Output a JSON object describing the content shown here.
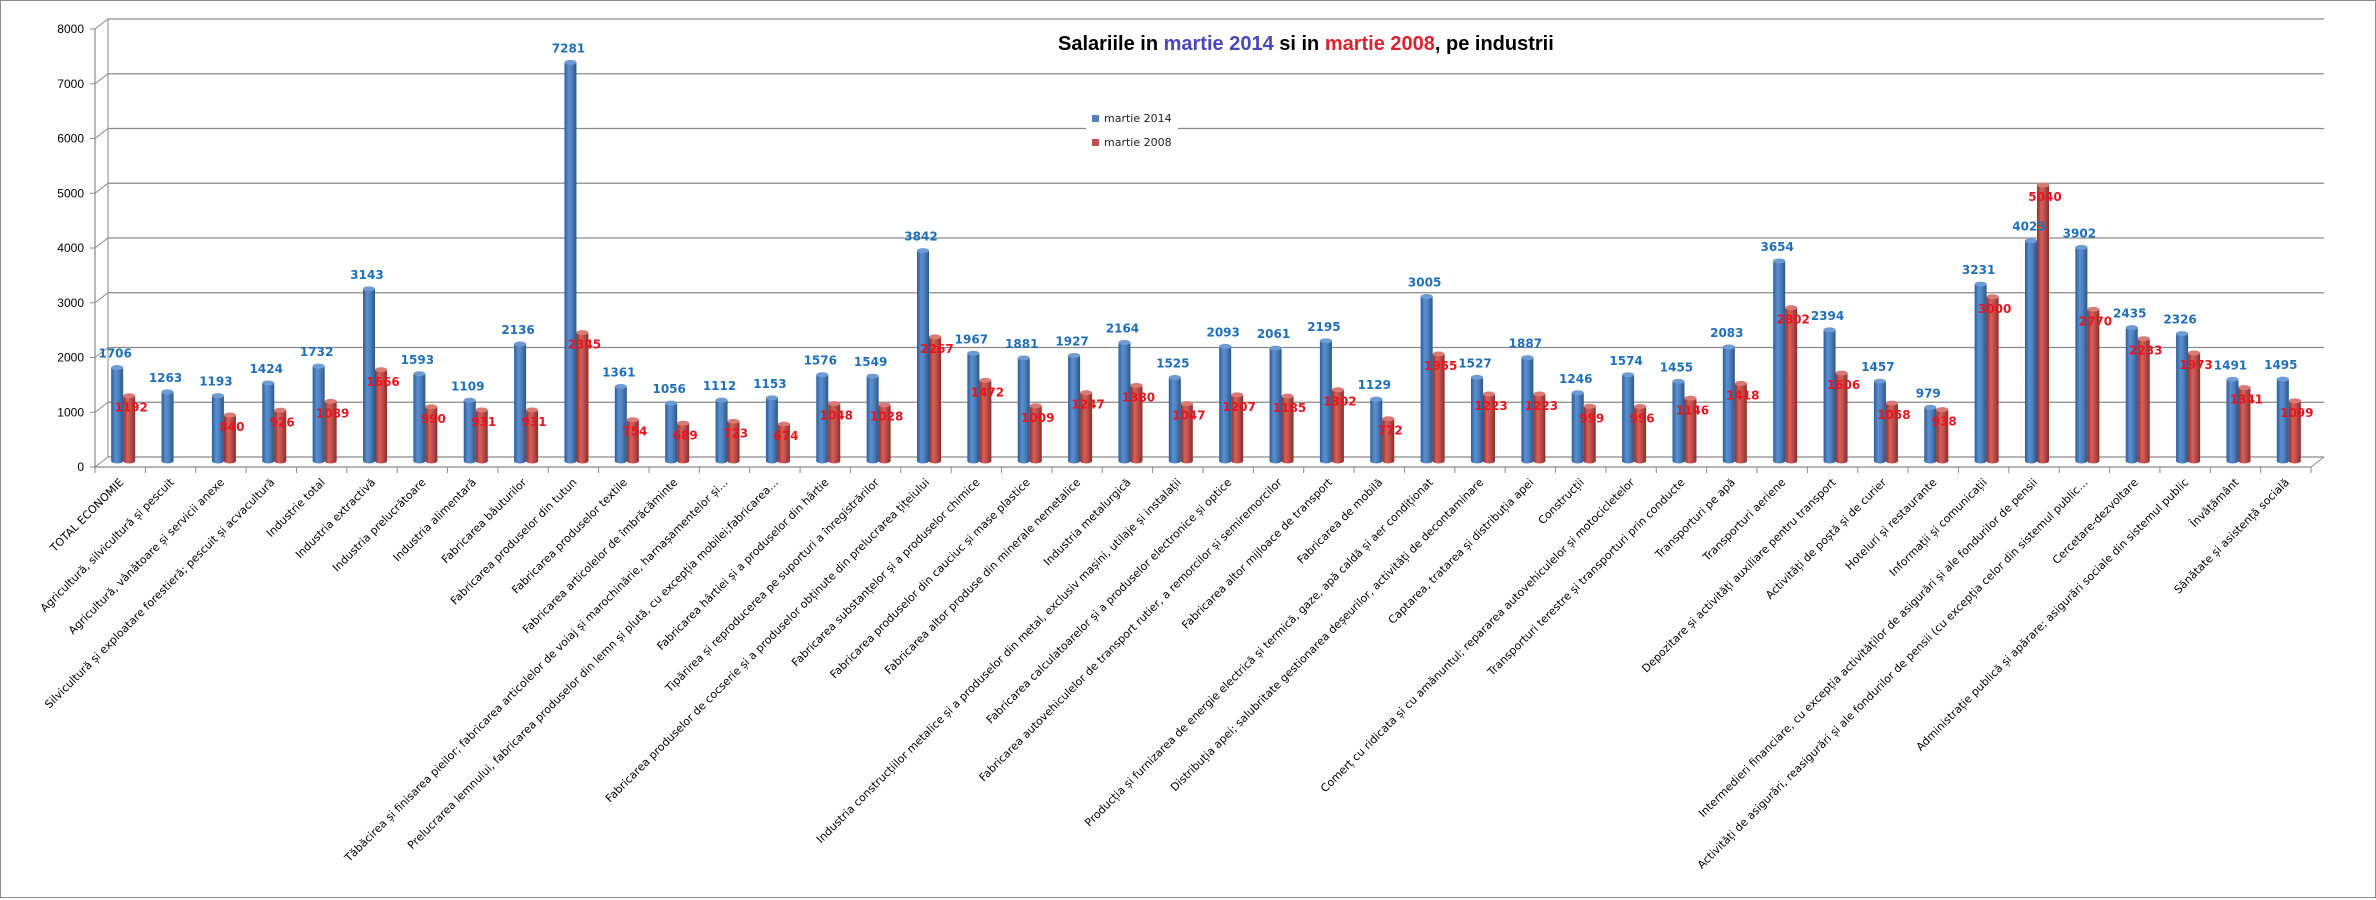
{
  "chart_data": {
    "type": "bar",
    "style": "3d-cylinder-clustered",
    "title": {
      "parts": [
        {
          "text": "Salariile in ",
          "color": "#000000"
        },
        {
          "text": "martie 2014",
          "color": "#4a48b8"
        },
        {
          "text": " si in ",
          "color": "#000000"
        },
        {
          "text": "martie 2008",
          "color": "#e0212e"
        },
        {
          "text": ", pe industrii",
          "color": "#000000"
        }
      ]
    },
    "xlabel": "",
    "ylabel": "",
    "ylim": [
      0,
      8000
    ],
    "yticks": [
      0,
      1000,
      2000,
      3000,
      4000,
      5000,
      6000,
      7000,
      8000
    ],
    "grid": true,
    "legend_position": "top-center",
    "categories": [
      "TOTAL ECONOMIE",
      "Agricultură, silvicultură și pescuit",
      "Agricultură, vânătoare și servicii anexe",
      "Silvicultură și exploatare forestieră; pescuit și acvacultură",
      "Industrie total",
      "Industria extractivă",
      "Industria prelucrătoare",
      "Industria alimentară",
      "Fabricarea băuturilor",
      "Fabricarea produselor din tutun",
      "Fabricarea produselor textile",
      "Fabricarea articolelor de îmbrăcăminte",
      "Tăbăcirea și finisarea pieilor; fabricarea articolelor de voiaj și marochinărie, harnașamentelor și…",
      "Prelucrarea lemnului, fabricarea produselor din lemn și plută, cu excepția mobilei;fabricarea…",
      "Fabricarea hârtiei și a produselor din hârtie",
      "Tipărirea și reproducerea pe suporturi a înregistrărilor",
      "Fabricarea produselor de cocserie și a produselor obținute din prelucrarea țițeiului",
      "Fabricarea substanțelor și a produselor chimice",
      "Fabricarea produselor din cauciuc și mase plastice",
      "Fabricarea altor produse din minerale nemetalice",
      "Industria metalurgică",
      "Industria construcțiilor metalice și a produselor din metal, exclusiv mașini, utilaje și instalații",
      "Fabricarea calculatoarelor și a produselor electronice și optice",
      "Fabricarea autovehiculelor de transport rutier, a remorcilor și semiremorcilor",
      "Fabricarea altor mijloace de transport",
      "Fabricarea de mobilă",
      "Producția și furnizarea de energie electrică și termică, gaze, apă caldă și aer condiționat",
      "Distribuția apei; salubritate gestionarea deșeurilor, activități de decontaminare",
      "Captarea, tratarea și distribuția apei",
      "Construcții",
      "Comerț cu ridicata și cu amănuntul; repararea autovehiculelor și motocicletelor",
      "Transporturi terestre și transporturi prin conducte",
      "Transporturi pe apă",
      "Transporturi aeriene",
      "Depozitare și activități auxiliare pentru transport",
      "Activități de poștă și de curier",
      "Hoteluri și restaurante",
      "Informații și comunicații",
      "Intermedieri financiare, cu excepția activităților de asigurări și ale fondurilor de pensii",
      "Activități de asigurări, reasigurări și ale fondurilor de pensii (cu excepția celor din sistemul public…",
      "Cercetare-dezvoltare",
      "Administrație publică și apărare; asigurări sociale din sistemul public",
      "Învățământ",
      "Sănătate și asistență socială"
    ],
    "series": [
      {
        "name": "martie 2014",
        "color": "#4f81bd",
        "label_color": "#1f6fbd",
        "values": [
          1706,
          1263,
          1193,
          1424,
          1732,
          3143,
          1593,
          1109,
          2136,
          7281,
          1361,
          1056,
          1112,
          1153,
          1576,
          1549,
          3842,
          1967,
          1881,
          1927,
          2164,
          1525,
          2093,
          2061,
          2195,
          1129,
          3005,
          1527,
          1887,
          1246,
          1574,
          1455,
          2083,
          3654,
          2394,
          1457,
          979,
          3231,
          4023,
          3902,
          2435,
          2326,
          1491,
          1495
        ]
      },
      {
        "name": "martie 2008",
        "color": "#c0504d",
        "label_color": "#e8141e",
        "values": [
          1192,
          null,
          840,
          926,
          1089,
          1666,
          990,
          931,
          931,
          2345,
          754,
          689,
          723,
          674,
          1048,
          1028,
          2267,
          1472,
          1009,
          1247,
          1380,
          1047,
          1207,
          1185,
          1302,
          772,
          1955,
          1223,
          1223,
          999,
          996,
          1146,
          1418,
          2802,
          1606,
          1058,
          938,
          3000,
          5040,
          2770,
          2233,
          1973,
          1341,
          1099
        ]
      }
    ]
  }
}
